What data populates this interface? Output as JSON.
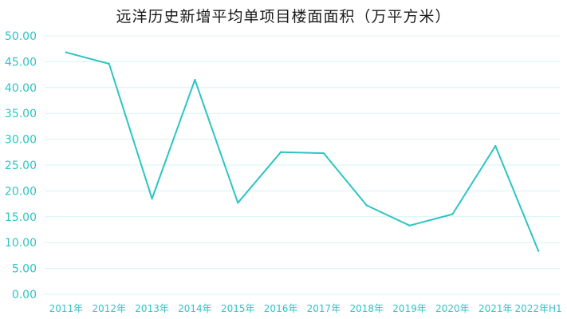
{
  "chart_data": {
    "type": "line",
    "title": "远洋历史新增平均单项目楼面面积（万平方米）",
    "categories": [
      "2011年",
      "2012年",
      "2013年",
      "2014年",
      "2015年",
      "2016年",
      "2017年",
      "2018年",
      "2019年",
      "2020年",
      "2021年",
      "2022年H1"
    ],
    "series": [
      {
        "values": [
          46.8,
          44.6,
          18.5,
          41.5,
          17.7,
          27.5,
          27.3,
          17.2,
          13.3,
          15.5,
          28.7,
          8.4
        ]
      }
    ],
    "xlabel": "",
    "ylabel": "",
    "ylim": [
      0,
      50
    ],
    "yticks": [
      "0.00",
      "5.00",
      "10.00",
      "15.00",
      "20.00",
      "25.00",
      "30.00",
      "35.00",
      "40.00",
      "45.00",
      "50.00"
    ],
    "grid": true,
    "legend": "none",
    "colors": {
      "line": "#2ec4c4",
      "grid": "#d6f3f3",
      "tick_label": "#2ec4c4",
      "title": "#1a1a1a"
    }
  }
}
